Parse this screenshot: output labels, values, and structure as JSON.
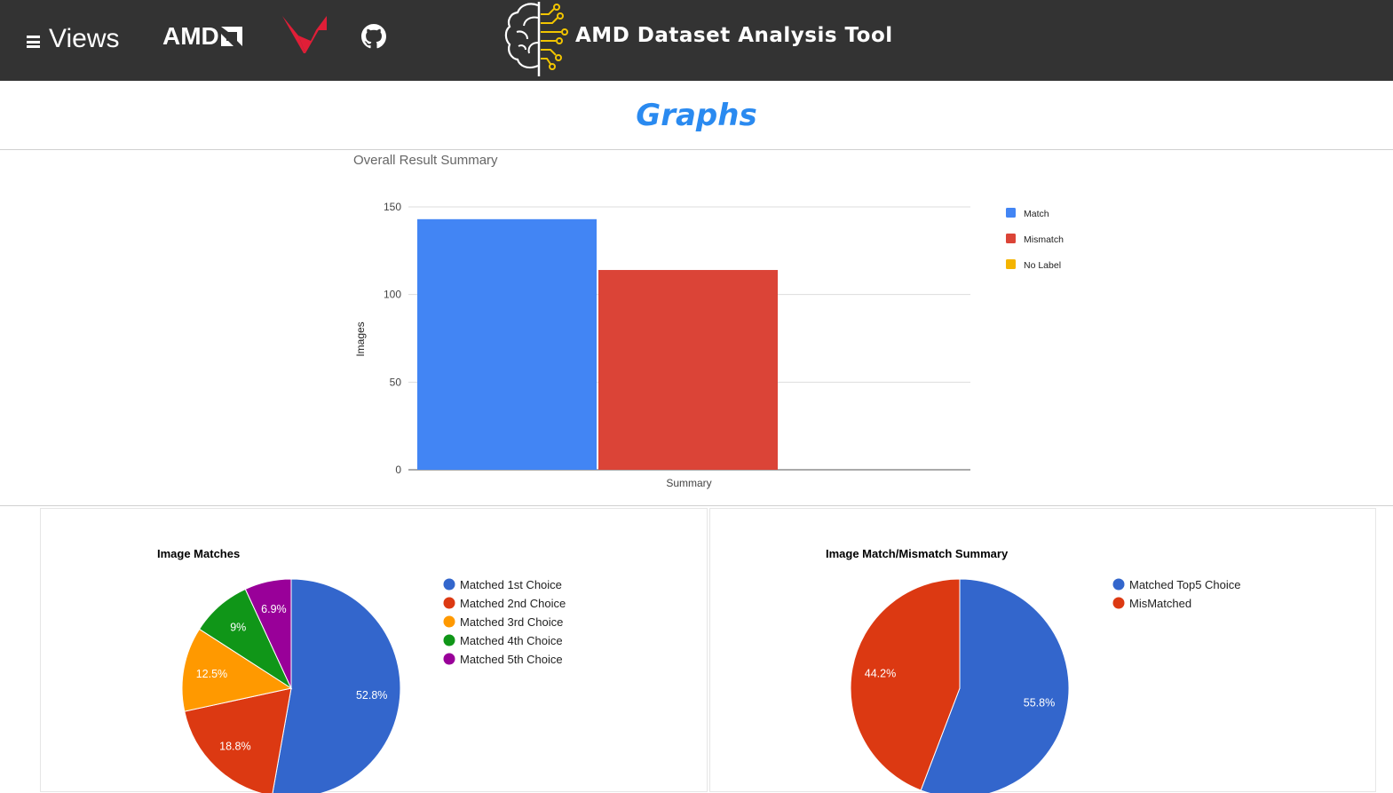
{
  "header": {
    "views_label": "Views",
    "amd_logo_text": "AMD",
    "app_title": "AMD Dataset Analysis Tool"
  },
  "page": {
    "heading": "Graphs"
  },
  "colors": {
    "header_bg": "#333333",
    "heading_blue": "#2a8af0",
    "match": "#4285f4",
    "mismatch": "#db4437",
    "no_label": "#f4b400",
    "radeon_red": "#e01e37",
    "brain_gold": "#f2c500"
  },
  "chart_data": [
    {
      "type": "bar",
      "title": "Overall Result Summary",
      "categories": [
        "Summary"
      ],
      "series": [
        {
          "name": "Match",
          "values": [
            143
          ],
          "color": "#4285f4"
        },
        {
          "name": "Mismatch",
          "values": [
            114
          ],
          "color": "#db4437"
        },
        {
          "name": "No Label",
          "values": [
            0
          ],
          "color": "#f4b400"
        }
      ],
      "xlabel": "Summary",
      "ylabel": "Images",
      "ylim": [
        0,
        150
      ],
      "yticks": [
        "0",
        "50",
        "100",
        "150"
      ],
      "grid": true,
      "legend": "right"
    },
    {
      "type": "pie",
      "title": "Image Matches",
      "labels": [
        "Matched 1st Choice",
        "Matched 2nd Choice",
        "Matched 3rd Choice",
        "Matched 4th Choice",
        "Matched 5th Choice"
      ],
      "values": [
        52.8,
        18.8,
        12.5,
        9,
        6.9
      ],
      "slice_labels": [
        "52.8%",
        "18.8%",
        "12.5%",
        "9%",
        "6.9%"
      ],
      "colors": [
        "#3366cc",
        "#dc3912",
        "#ff9900",
        "#109618",
        "#990099"
      ],
      "legend": "right"
    },
    {
      "type": "pie",
      "title": "Image Match/Mismatch Summary",
      "labels": [
        "Matched Top5 Choice",
        "MisMatched"
      ],
      "values": [
        55.8,
        44.2
      ],
      "slice_labels": [
        "55.8%",
        "44.2%"
      ],
      "colors": [
        "#3366cc",
        "#dc3912"
      ],
      "legend": "right"
    }
  ]
}
